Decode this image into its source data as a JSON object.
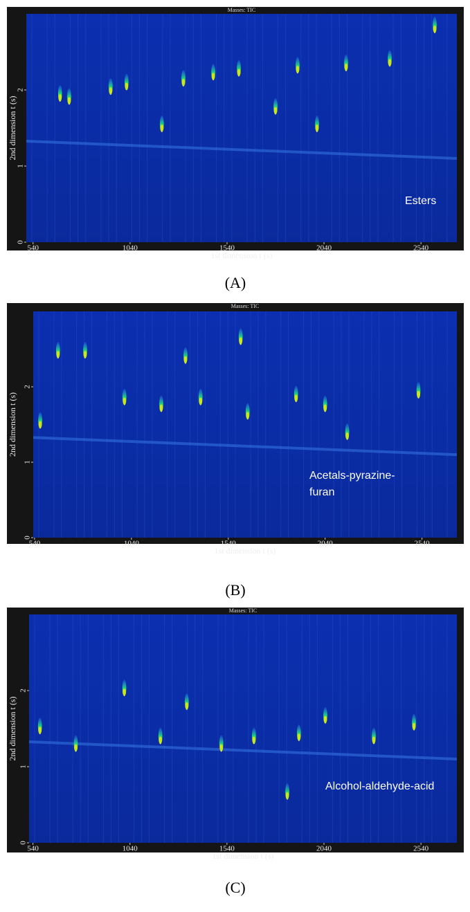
{
  "chart_data": [
    {
      "type": "heatmap",
      "title": "Masses: TIC",
      "xlabel": "1st dimension t (s)",
      "ylabel": "2nd dimension t (s)",
      "annotation": [
        "Esters"
      ],
      "panel_label": "(A)",
      "xlim": [
        505,
        2725
      ],
      "ylim": [
        0,
        3
      ],
      "xticks": [
        540,
        1040,
        1540,
        2040,
        2540
      ],
      "yticks": [
        0,
        1,
        2
      ],
      "color": "#c8e81a",
      "x": [
        1022,
        1204,
        679,
        726,
        940,
        1315,
        1469,
        1601,
        1904,
        2154,
        2379,
        2611,
        1790,
        2004
      ],
      "values": [
        2.05,
        1.5,
        1.9,
        1.86,
        1.99,
        2.1,
        2.18,
        2.23,
        2.27,
        2.3,
        2.36,
        2.8,
        1.73,
        1.5
      ]
    },
    {
      "type": "heatmap",
      "title": "Masses: TIC",
      "xlabel": "1st dimension t (s)",
      "ylabel": "2nd dimension t (s)",
      "annotation": [
        "Acetals-pyrazine-",
        "furan"
      ],
      "panel_label": "(B)",
      "xlim": [
        533,
        2720
      ],
      "ylim": [
        0,
        3
      ],
      "xticks": [
        540,
        1040,
        1540,
        2040,
        2540
      ],
      "yticks": [
        0,
        1,
        2
      ],
      "color": "#c8e81a",
      "x": [
        569,
        661,
        801,
        1004,
        1194,
        1319,
        1397,
        1604,
        1640,
        1890,
        2040,
        2154,
        2522
      ],
      "values": [
        1.5,
        2.43,
        2.43,
        1.81,
        1.72,
        2.36,
        1.81,
        2.61,
        1.62,
        1.85,
        1.72,
        1.35,
        1.9
      ]
    },
    {
      "type": "heatmap",
      "title": "Masses: TIC",
      "xlabel": "1st dimension t (s)",
      "ylabel": "2nd dimension t (s)",
      "annotation": [
        "Alcohol-aldehyde-acid"
      ],
      "panel_label": "(C)",
      "xlim": [
        520,
        2725
      ],
      "ylim": [
        0,
        3
      ],
      "xticks": [
        540,
        1040,
        1540,
        2040,
        2540
      ],
      "yticks": [
        0,
        1,
        2
      ],
      "color": "#c8e81a",
      "x": [
        576,
        761,
        1011,
        1197,
        1511,
        1679,
        1911,
        2047,
        2297,
        2504,
        1333,
        1851
      ],
      "values": [
        1.48,
        1.25,
        1.98,
        1.35,
        1.25,
        1.35,
        1.39,
        1.62,
        1.35,
        1.53,
        1.8,
        0.62
      ]
    }
  ]
}
